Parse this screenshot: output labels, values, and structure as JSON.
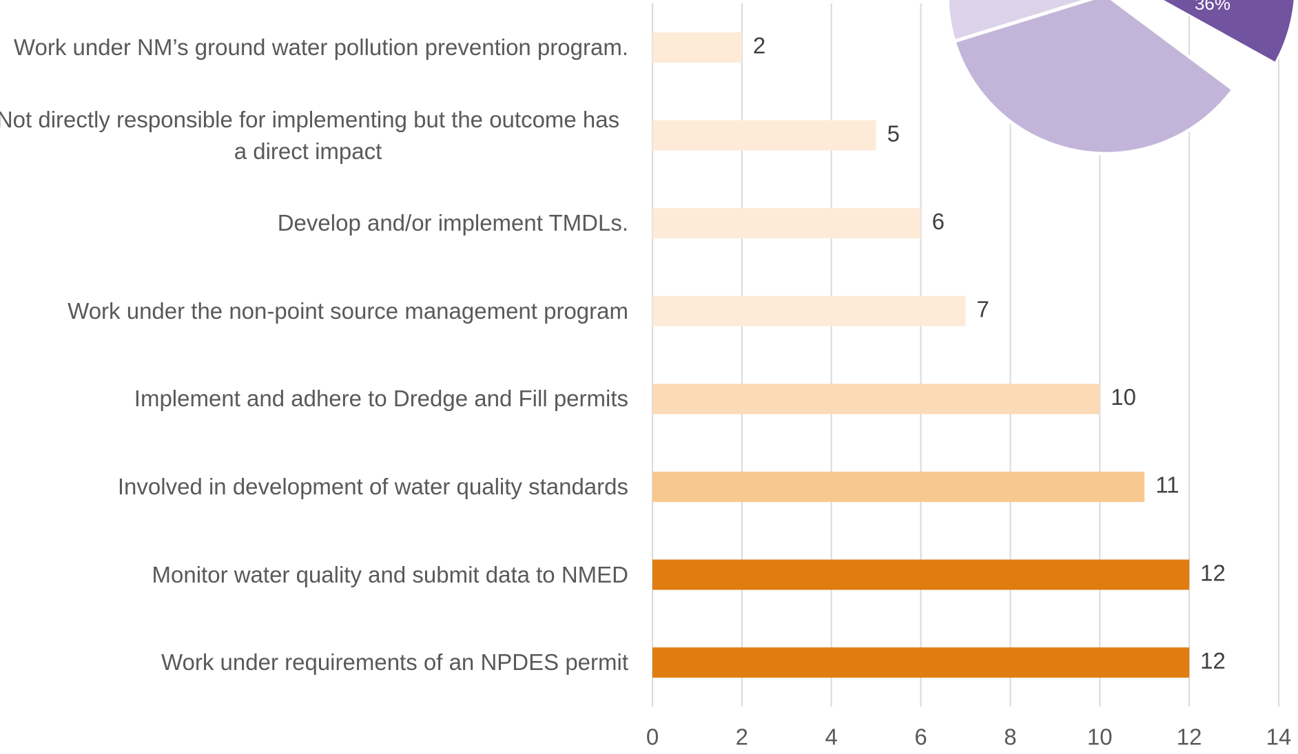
{
  "chart_data": [
    {
      "type": "barh",
      "categories": [
        "Work under NM’s ground water pollution prevention program.",
        "Not directly responsible for implementing but the outcome has a direct impact",
        "Develop and/or implement TMDLs.",
        "Work under the non-point source management program",
        "Implement and adhere to Dredge and Fill permits",
        "Involved in development of water quality standards",
        "Monitor water quality and submit data to NMED",
        "Work under requirements of an NPDES permit"
      ],
      "values": [
        2,
        5,
        6,
        7,
        10,
        11,
        12,
        12
      ],
      "colors": [
        "#fdebd8",
        "#fdebd8",
        "#fdebd8",
        "#fdebd8",
        "#fbdab6",
        "#f8c891",
        "#df7d10",
        "#df7d10"
      ],
      "xlim": [
        0,
        14
      ],
      "xticks": [
        0,
        2,
        4,
        6,
        8,
        10,
        12,
        14
      ],
      "grid": true
    },
    {
      "type": "pie",
      "values": [
        36
      ],
      "value_labels": [
        "36%"
      ],
      "color": "#7153a0"
    }
  ]
}
